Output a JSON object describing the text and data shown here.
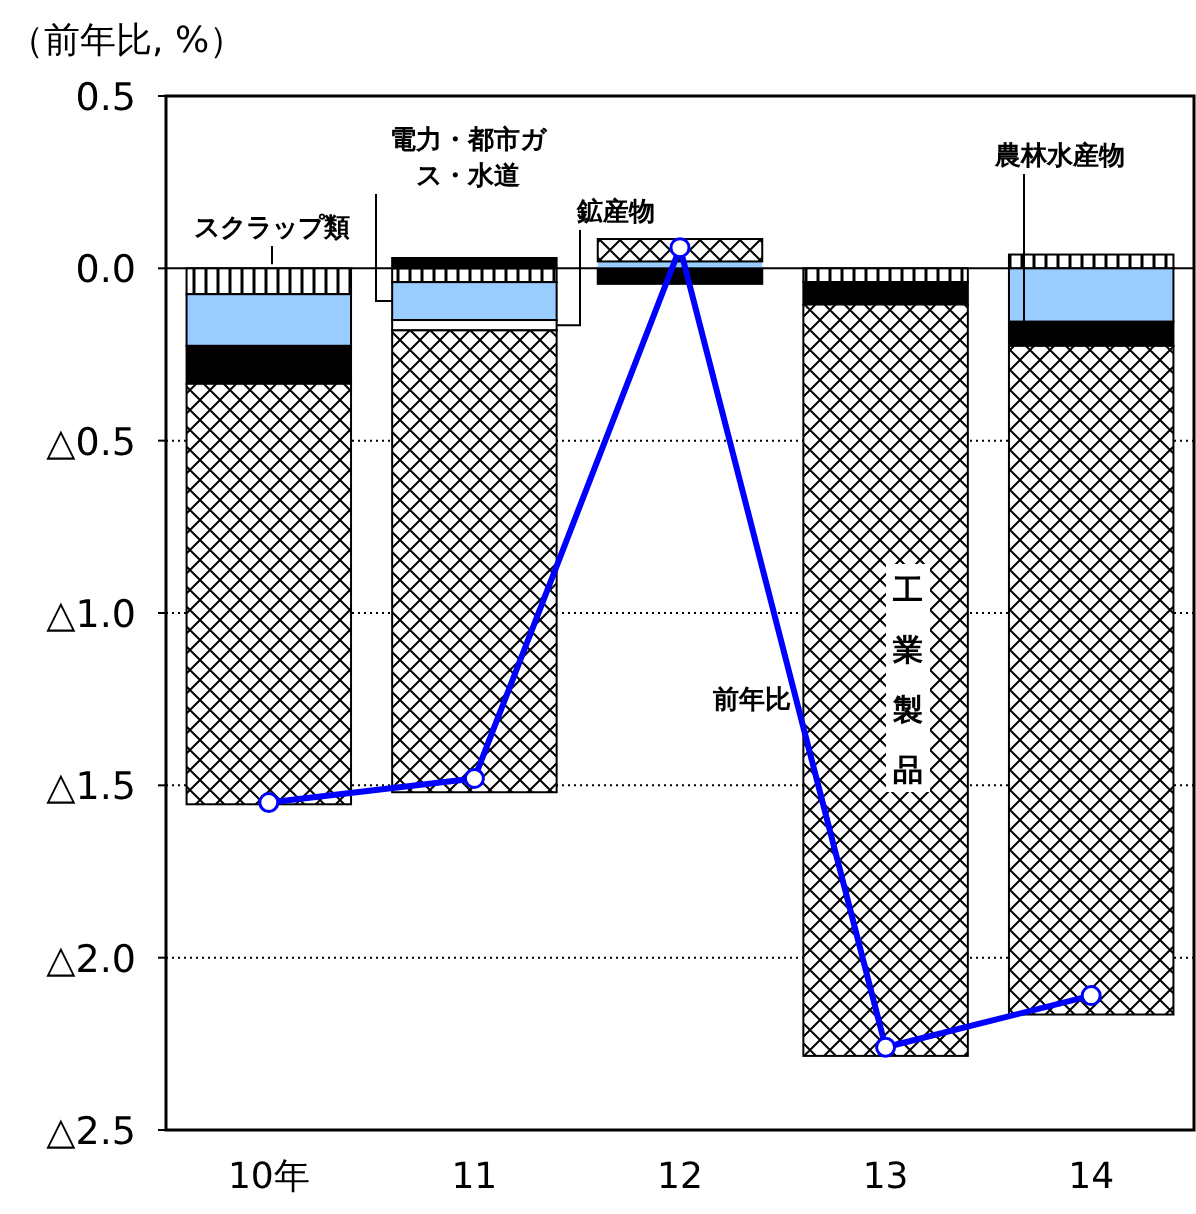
{
  "chart_data": {
    "type": "bar",
    "stacked": true,
    "ylabel": "（前年比, %）",
    "categories": [
      "10年",
      "11",
      "12",
      "13",
      "14"
    ],
    "series": [
      {
        "name": "スクラップ類",
        "color": "#000000",
        "values": [
          -0.075,
          -0.04,
          0,
          -0.04,
          0.04
        ]
      },
      {
        "name": "電力・都市ガス・水道",
        "color": "#99ccff",
        "values": [
          -0.15,
          -0.11,
          0.02,
          0,
          -0.155
        ]
      },
      {
        "name": "鉱産物",
        "color": "#ffffff",
        "values": [
          0,
          -0.03,
          0,
          0,
          0
        ]
      },
      {
        "name": "農林水産物",
        "color": "#000000",
        "values": [
          -0.11,
          0.03,
          -0.045,
          -0.065,
          -0.07
        ]
      },
      {
        "name": "工業製品",
        "color": "#000000",
        "values": [
          -1.22,
          -1.34,
          0.065,
          -2.18,
          -1.94
        ]
      },
      {
        "name": "前年比",
        "type": "line",
        "color": "#0000ff",
        "marker": "circle",
        "values": [
          -1.55,
          -1.48,
          0.06,
          -2.26,
          -2.11
        ]
      }
    ],
    "ylim": [
      -2.5,
      0.5
    ],
    "yticks": [
      {
        "value": 0.5,
        "label": "0.5"
      },
      {
        "value": 0,
        "label": "0.0"
      },
      {
        "value": -0.5,
        "label": "△0.5"
      },
      {
        "value": -1,
        "label": "△1.0"
      },
      {
        "value": -1.5,
        "label": "△1.5"
      },
      {
        "value": -2,
        "label": "△2.0"
      },
      {
        "value": -2.5,
        "label": "△2.5"
      }
    ],
    "grid": "y"
  }
}
